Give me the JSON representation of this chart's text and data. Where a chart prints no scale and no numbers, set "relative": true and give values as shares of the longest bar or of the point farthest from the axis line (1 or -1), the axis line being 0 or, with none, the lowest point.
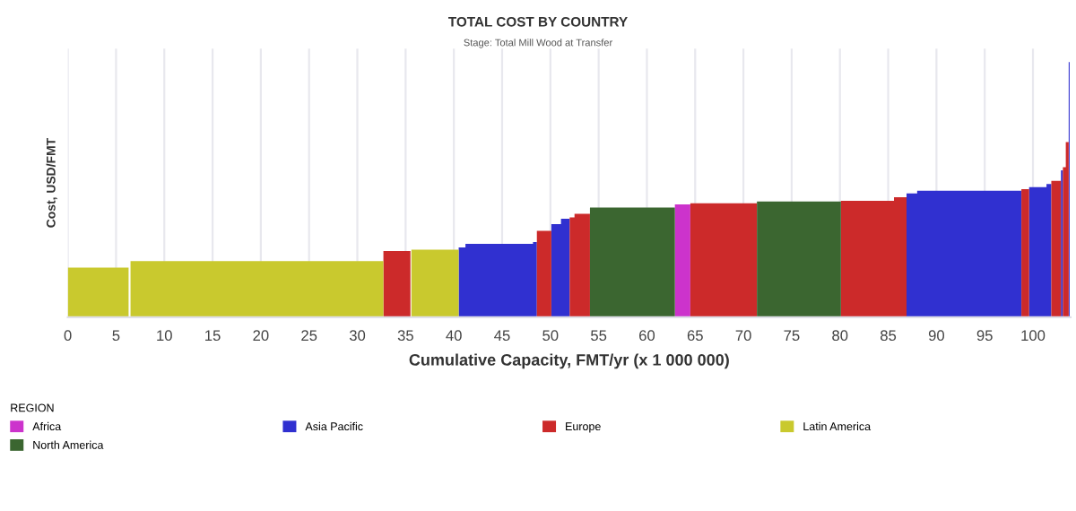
{
  "chart_data": {
    "type": "area",
    "title": "TOTAL COST BY COUNTRY",
    "subtitle": "Stage: Total Mill Wood at Transfer",
    "xlabel": "Cumulative Capacity, FMT/yr (x 1 000 000)",
    "ylabel": "Cost, USD/FMT",
    "legend_title": "REGION",
    "legend": "bottom",
    "grid": "x",
    "relative": true,
    "xlim": [
      0,
      103.9
    ],
    "xticks": [
      0,
      5,
      10,
      15,
      20,
      25,
      30,
      35,
      40,
      45,
      50,
      55,
      60,
      65,
      70,
      75,
      80,
      85,
      90,
      95,
      100
    ],
    "series": [
      {
        "name": "Africa",
        "color": "#cc33cc",
        "x": [
          62.9,
          62.9,
          64.5,
          64.5
        ],
        "values": [
          0,
          0.442,
          0.442,
          0
        ]
      },
      {
        "name": "Asia Pacific",
        "color": "#3030d0",
        "x": [
          40.5,
          40.5,
          41.2,
          41.2,
          48.2,
          48.2,
          48.6,
          48.6,
          50.1,
          50.1,
          51.1,
          51.1,
          52.0,
          52.0,
          86.9,
          86.9,
          88.0,
          88.0,
          98.8,
          98.8,
          99.6,
          99.6,
          101.4,
          101.4,
          101.9,
          101.9,
          102.9,
          102.9,
          103.1,
          103.1,
          103.7,
          103.7,
          103.8,
          103.8
        ],
        "values": [
          0,
          0.274,
          0.274,
          0.288,
          0.288,
          0.295,
          0.295,
          0,
          0,
          0.365,
          0.365,
          0.386,
          0.386,
          0,
          0,
          0.485,
          0.485,
          0.496,
          0.496,
          0,
          0,
          0.51,
          0.51,
          0.522,
          0.522,
          0,
          0,
          0.576,
          0.576,
          0,
          0,
          1,
          1,
          0
        ]
      },
      {
        "name": "Europe",
        "color": "#cc2a2a",
        "x": [
          32.7,
          32.7,
          35.5,
          35.5,
          48.6,
          48.6,
          50.1,
          50.1,
          52.0,
          52.0,
          52.5,
          52.5,
          54.1,
          54.1,
          64.5,
          64.5,
          71.4,
          71.4,
          80.1,
          80.1,
          85.6,
          85.6,
          86.9,
          86.9,
          98.8,
          98.8,
          99.6,
          99.6,
          101.9,
          101.9,
          102.9,
          102.9,
          103.1,
          103.1,
          103.4,
          103.4,
          103.7,
          103.7
        ],
        "values": [
          0,
          0.26,
          0.26,
          0,
          0,
          0.339,
          0.339,
          0,
          0,
          0.391,
          0.391,
          0.405,
          0.405,
          0,
          0,
          0.447,
          0.447,
          0,
          0,
          0.456,
          0.456,
          0.47,
          0.47,
          0,
          0,
          0.502,
          0.502,
          0,
          0,
          0.534,
          0.534,
          0,
          0,
          0.588,
          0.588,
          0.686,
          0.686,
          0
        ]
      },
      {
        "name": "Latin America",
        "color": "#c9c92e",
        "x": [
          0,
          0,
          6.3,
          6.3,
          6.5,
          6.5,
          32.7,
          32.7,
          35.6,
          35.6,
          40.5,
          40.5
        ],
        "values": [
          0,
          0.195,
          0.195,
          0,
          0,
          0.22,
          0.22,
          0,
          0,
          0.265,
          0.265,
          0
        ]
      },
      {
        "name": "North America",
        "color": "#3b6630",
        "x": [
          54.1,
          54.1,
          62.9,
          62.9,
          71.4,
          71.4,
          80.1,
          80.1
        ],
        "values": [
          0,
          0.43,
          0.43,
          0,
          0,
          0.454,
          0.454,
          0
        ]
      }
    ]
  }
}
